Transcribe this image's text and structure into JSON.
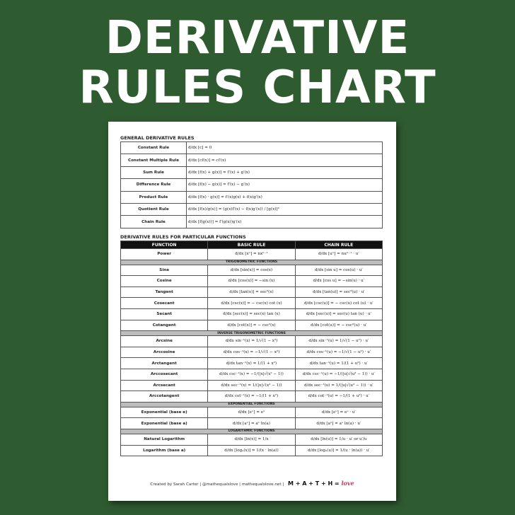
{
  "title": {
    "line1": "DERIVATIVE",
    "line2": "RULES CHART"
  },
  "general": {
    "heading": "GENERAL DERIVATIVE RULES",
    "rows": [
      {
        "name": "Constant Rule",
        "formula": "d/dx [c] = 0"
      },
      {
        "name": "Constant Multiple Rule",
        "formula": "d/dx [cf(x)] = cf′(x)"
      },
      {
        "name": "Sum Rule",
        "formula": "d/dx [f(x) + g(x)] = f′(x) + g′(x)"
      },
      {
        "name": "Difference Rule",
        "formula": "d/dx [f(x) − g(x)] = f′(x) − g′(x)"
      },
      {
        "name": "Product Rule",
        "formula": "d/dx [f(x) · g(x)] = f′(x)g(x) + f(x)g′(x)"
      },
      {
        "name": "Quotient Rule",
        "formula": "d/dx [f(x)/g(x)] = (g(x)f′(x) − f(x)g′(x)) / [g(x)]²"
      },
      {
        "name": "Chain Rule",
        "formula": "d/dx [f(g(x))] = f′(g(x))g′(x)"
      }
    ]
  },
  "particular": {
    "heading": "DERIVATIVE RULES FOR PARTICULAR FUNCTIONS",
    "columns": [
      "FUNCTION",
      "BASIC RULE",
      "CHAIN RULE"
    ],
    "sections": [
      {
        "title": "",
        "rows": [
          {
            "name": "Power",
            "basic": "d/dx [xⁿ] = nxⁿ⁻¹",
            "chain": "d/dx [uⁿ] = nuⁿ⁻¹ · u′"
          }
        ]
      },
      {
        "title": "TRIGONOMETRIC FUNCTIONS",
        "rows": [
          {
            "name": "Sine",
            "basic": "d/dx [sin(x)] = cos(x)",
            "chain": "d/dx [sin u] = cos(u) · u′"
          },
          {
            "name": "Cosine",
            "basic": "d/dx [cos(x)] = −sin (x)",
            "chain": "d/dx [cos u] = −sin(u) · u′"
          },
          {
            "name": "Tangent",
            "basic": "d/dx [tan(x)] = sec²(x)",
            "chain": "d/dx [tan(u)] = sec²(u) · u′"
          },
          {
            "name": "Cosecant",
            "basic": "d/dx [csc(x)] = − csc(x) cot (x)",
            "chain": "d/dx [csc(u)] = − csc(u) cot (u) · u′"
          },
          {
            "name": "Secant",
            "basic": "d/dx [sec(x)] = sec(x) tan (x)",
            "chain": "d/dx [sec(u)] = sec(u) tan (u) · u′"
          },
          {
            "name": "Cotangent",
            "basic": "d/dx [cot(x)] = − csc²(x)",
            "chain": "d/dx [cot(u)] = − csc²(u) · u′"
          }
        ]
      },
      {
        "title": "INVERSE TRIGONOMETRIC FUNCTIONS",
        "rows": [
          {
            "name": "Arcsine",
            "basic": "d/dx sin⁻¹(x) = 1/√(1 − x²)",
            "chain": "d/dx sin⁻¹(u) = 1/√(1 − u²) · u′"
          },
          {
            "name": "Arccosine",
            "basic": "d/dx cos⁻¹(x) = −1/√(1 − x²)",
            "chain": "d/dx cos⁻¹(u) = −1/√(1 − u²) · u′"
          },
          {
            "name": "Arctangent",
            "basic": "d/dx tan⁻¹(x) = 1/(1 + x²)",
            "chain": "d/dx tan⁻¹(u) = 1/(1 + u²) · u′"
          },
          {
            "name": "Arccosecant",
            "basic": "d/dx csc⁻¹(x) = −1/(|x|√(x² − 1))",
            "chain": "d/dx csc⁻¹(u) = −1/(|u|√(u² − 1)) · u′"
          },
          {
            "name": "Arcsecant",
            "basic": "d/dx sec⁻¹(x) = 1/(|x|√(x² − 1))",
            "chain": "d/dx sec⁻¹(u) = 1/(|u|√(u² − 1)) · u′"
          },
          {
            "name": "Arccotangent",
            "basic": "d/dx cot⁻¹(x) = −1/(1 + x²)",
            "chain": "d/dx cot⁻¹(u) = −1/(1 + u²) · u′"
          }
        ]
      },
      {
        "title": "EXPONENTIAL FUNCTIONS",
        "rows": [
          {
            "name": "Exponential (base e)",
            "basic": "d/dx [eˣ] = eˣ",
            "chain": "d/dx [eᵘ] = eᵘ · u′"
          },
          {
            "name": "Exponential (base a)",
            "basic": "d/dx [aˣ] = aˣ ln(a)",
            "chain": "d/dx [aᵘ] = aᵘ ln(a) · u′"
          }
        ]
      },
      {
        "title": "LOGARITHMIC FUNCTIONS",
        "rows": [
          {
            "name": "Natural Logarithm",
            "basic": "d/dx [ln(x)] = 1/x",
            "chain": "d/dx [ln(u)] = 1/u · u′ or u′/u"
          },
          {
            "name": "Logarithm (base a)",
            "basic": "d/dx [logₐ(x)] = 1/(x · ln(a))",
            "chain": "d/dx [logₐ(u)] = 1/(u · ln(a)) · u′"
          }
        ]
      }
    ]
  },
  "footer": {
    "credit": "Created by Sarah Carter | @mathequalslove | mathequalslove.net |",
    "logo": "M + A + T + H =",
    "logo_love": "love"
  },
  "colors": {
    "background": "#2f5b31",
    "header": "#111111",
    "section_band": "#bdbdbd",
    "logo_love": "#d0345a"
  }
}
